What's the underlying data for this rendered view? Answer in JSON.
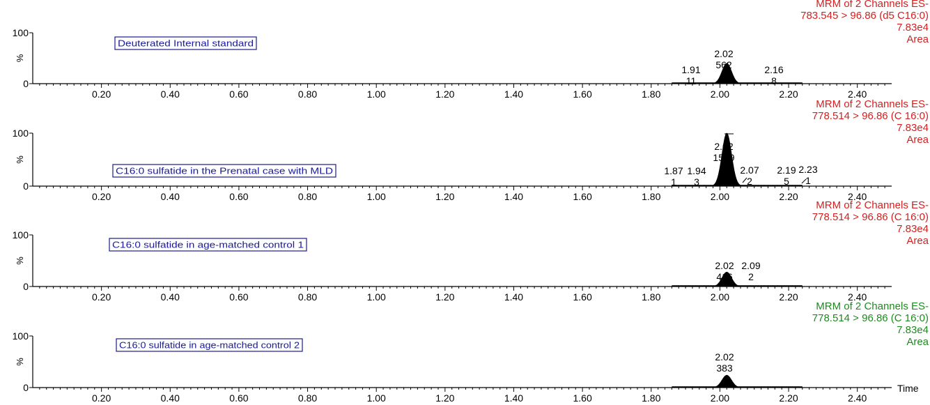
{
  "x_axis_label": "Time",
  "chart_data": [
    {
      "type": "line",
      "channel": [
        "MRM of 2 Channels ES-",
        "783.545 > 96.86 (d5 C16:0)",
        "7.83e4",
        "Area"
      ],
      "header_color": "#d42020",
      "legend_box": "Deuterated Internal standard",
      "ylabel": "%",
      "y_ticks": [
        "100",
        "0"
      ],
      "ylim": [
        0,
        100
      ],
      "xlim": [
        0,
        2.5
      ],
      "x_ticks": [
        "0.20",
        "0.40",
        "0.60",
        "0.80",
        "1.00",
        "1.20",
        "1.40",
        "1.60",
        "1.80",
        "2.00",
        "2.20",
        "2.40"
      ],
      "peak": {
        "rt": 2.02,
        "height": 40,
        "width": 0.014,
        "baseline_range": [
          1.86,
          2.24
        ]
      },
      "peak_labels": [
        {
          "rt": "1.91",
          "area": "11"
        },
        {
          "rt": "2.02",
          "area": "562"
        },
        {
          "rt": "2.16",
          "area": "8"
        }
      ]
    },
    {
      "type": "line",
      "channel": [
        "MRM of 2 Channels ES-",
        "778.514 > 96.86 (C 16:0)",
        "7.83e4",
        "Area"
      ],
      "header_color": "#d42020",
      "legend_box": "C16:0 sulfatide in the Prenatal case with MLD",
      "ylabel": "%",
      "y_ticks": [
        "100",
        "0"
      ],
      "ylim": [
        0,
        100
      ],
      "xlim": [
        0,
        2.5
      ],
      "x_ticks": [
        "0.20",
        "0.40",
        "0.60",
        "0.80",
        "1.00",
        "1.20",
        "1.40",
        "1.60",
        "1.80",
        "2.00",
        "2.20",
        "2.40"
      ],
      "peak": {
        "rt": 2.02,
        "height": 100,
        "width": 0.014,
        "baseline_range": [
          1.86,
          2.24
        ]
      },
      "peak_labels": [
        {
          "rt": "1.87",
          "area": "1"
        },
        {
          "rt": "1.94",
          "area": "3"
        },
        {
          "rt": "2.02",
          "area": "1549"
        },
        {
          "rt": "2.07",
          "area": "2"
        },
        {
          "rt": "2.19",
          "area": "5"
        },
        {
          "rt": "2.23",
          "area": "1"
        }
      ]
    },
    {
      "type": "line",
      "channel": [
        "MRM of 2 Channels ES-",
        "778.514 > 96.86 (C 16:0)",
        "7.83e4",
        "Area"
      ],
      "header_color": "#d42020",
      "legend_box": "C16:0 sulfatide in age-matched control 1",
      "ylabel": "%",
      "y_ticks": [
        "100",
        "0"
      ],
      "ylim": [
        0,
        100
      ],
      "xlim": [
        0,
        2.5
      ],
      "x_ticks": [
        "0.20",
        "0.40",
        "0.60",
        "0.80",
        "1.00",
        "1.20",
        "1.40",
        "1.60",
        "1.80",
        "2.00",
        "2.20",
        "2.40"
      ],
      "peak": {
        "rt": 2.02,
        "height": 28,
        "width": 0.014,
        "baseline_range": [
          1.86,
          2.24
        ]
      },
      "peak_labels": [
        {
          "rt": "2.02",
          "area": "416"
        },
        {
          "rt": "2.09",
          "area": "2"
        }
      ]
    },
    {
      "type": "line",
      "channel": [
        "MRM of 2 Channels ES-",
        "778.514 > 96.86 (C 16:0)",
        "7.83e4",
        "Area"
      ],
      "header_color": "#1e8a1e",
      "legend_box": "C16:0 sulfatide in age-matched control 2",
      "ylabel": "%",
      "y_ticks": [
        "100",
        "0"
      ],
      "ylim": [
        0,
        100
      ],
      "xlim": [
        0,
        2.5
      ],
      "x_ticks": [
        "0.20",
        "0.40",
        "0.60",
        "0.80",
        "1.00",
        "1.20",
        "1.40",
        "1.60",
        "1.80",
        "2.00",
        "2.20",
        "2.40"
      ],
      "peak": {
        "rt": 2.02,
        "height": 24,
        "width": 0.014,
        "baseline_range": [
          1.86,
          2.24
        ]
      },
      "peak_labels": [
        {
          "rt": "2.02",
          "area": "383"
        }
      ]
    }
  ]
}
